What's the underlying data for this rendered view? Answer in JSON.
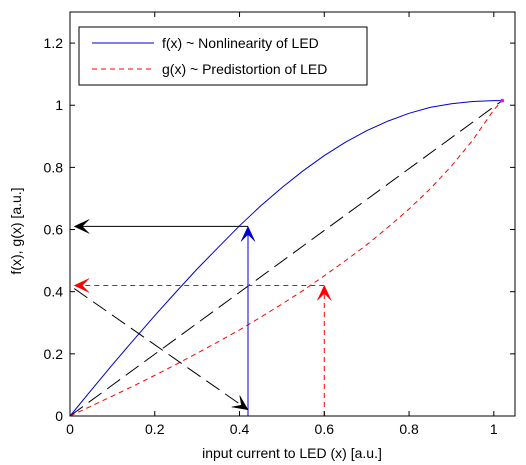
{
  "chart_data": {
    "type": "line",
    "title": "",
    "xlabel": "input current to LED (x) [a.u.]",
    "ylabel": "f(x), g(x) [a.u.]",
    "xlim": [
      0,
      1.05
    ],
    "ylim": [
      0,
      1.3
    ],
    "xticks": [
      "0",
      "0.2",
      "0.4",
      "0.6",
      "0.8",
      "1"
    ],
    "yticks": [
      "0",
      "0.2",
      "0.4",
      "0.6",
      "0.8",
      "1",
      "1.2"
    ],
    "grid": false,
    "legend_position": "top-left",
    "series": [
      {
        "name": "f(x) ~ Nonlinearity of LED",
        "color": "#0000cc",
        "style": "solid",
        "x": [
          0,
          0.05,
          0.1,
          0.15,
          0.2,
          0.25,
          0.3,
          0.35,
          0.4,
          0.45,
          0.5,
          0.55,
          0.6,
          0.65,
          0.7,
          0.75,
          0.8,
          0.85,
          0.9,
          0.95,
          1.0,
          1.02
        ],
        "y": [
          0,
          0.083,
          0.165,
          0.245,
          0.323,
          0.399,
          0.473,
          0.543,
          0.612,
          0.676,
          0.735,
          0.789,
          0.838,
          0.881,
          0.918,
          0.949,
          0.974,
          0.993,
          1.005,
          1.012,
          1.015,
          1.015
        ]
      },
      {
        "name": "g(x) ~ Predistortion of LED",
        "color": "#ff0000",
        "style": "dashed",
        "x": [
          0,
          0.05,
          0.1,
          0.15,
          0.2,
          0.25,
          0.3,
          0.35,
          0.4,
          0.45,
          0.5,
          0.55,
          0.6,
          0.65,
          0.7,
          0.75,
          0.8,
          0.85,
          0.9,
          0.95,
          1.0,
          1.02
        ],
        "y": [
          0,
          0.032,
          0.064,
          0.097,
          0.131,
          0.166,
          0.202,
          0.239,
          0.277,
          0.318,
          0.36,
          0.404,
          0.451,
          0.5,
          0.551,
          0.607,
          0.666,
          0.731,
          0.804,
          0.887,
          0.985,
          1.015
        ]
      },
      {
        "color": "#000000",
        "style": "long-dash",
        "x": [
          0,
          1.02
        ],
        "y": [
          0,
          1.015
        ]
      }
    ],
    "annotations": [
      {
        "kind": "arrow",
        "color": "#0000cc",
        "style": "solid",
        "from": [
          0.42,
          0
        ],
        "to": [
          0.42,
          0.61
        ]
      },
      {
        "kind": "arrow",
        "color": "#000000",
        "style": "solid",
        "from": [
          0.42,
          0.61
        ],
        "to": [
          0.01,
          0.61
        ]
      },
      {
        "kind": "arrow",
        "color": "#ff0000",
        "style": "dashed",
        "from": [
          0.6,
          0
        ],
        "to": [
          0.6,
          0.42
        ]
      },
      {
        "kind": "arrow",
        "color": "#ff0000",
        "style": "dashed",
        "from": [
          0.6,
          0.42
        ],
        "to": [
          0.01,
          0.42
        ]
      },
      {
        "kind": "arrow",
        "color": "#000000",
        "style": "long-dash",
        "from": [
          0.01,
          0.41
        ],
        "to": [
          0.42,
          0.02
        ]
      }
    ]
  }
}
